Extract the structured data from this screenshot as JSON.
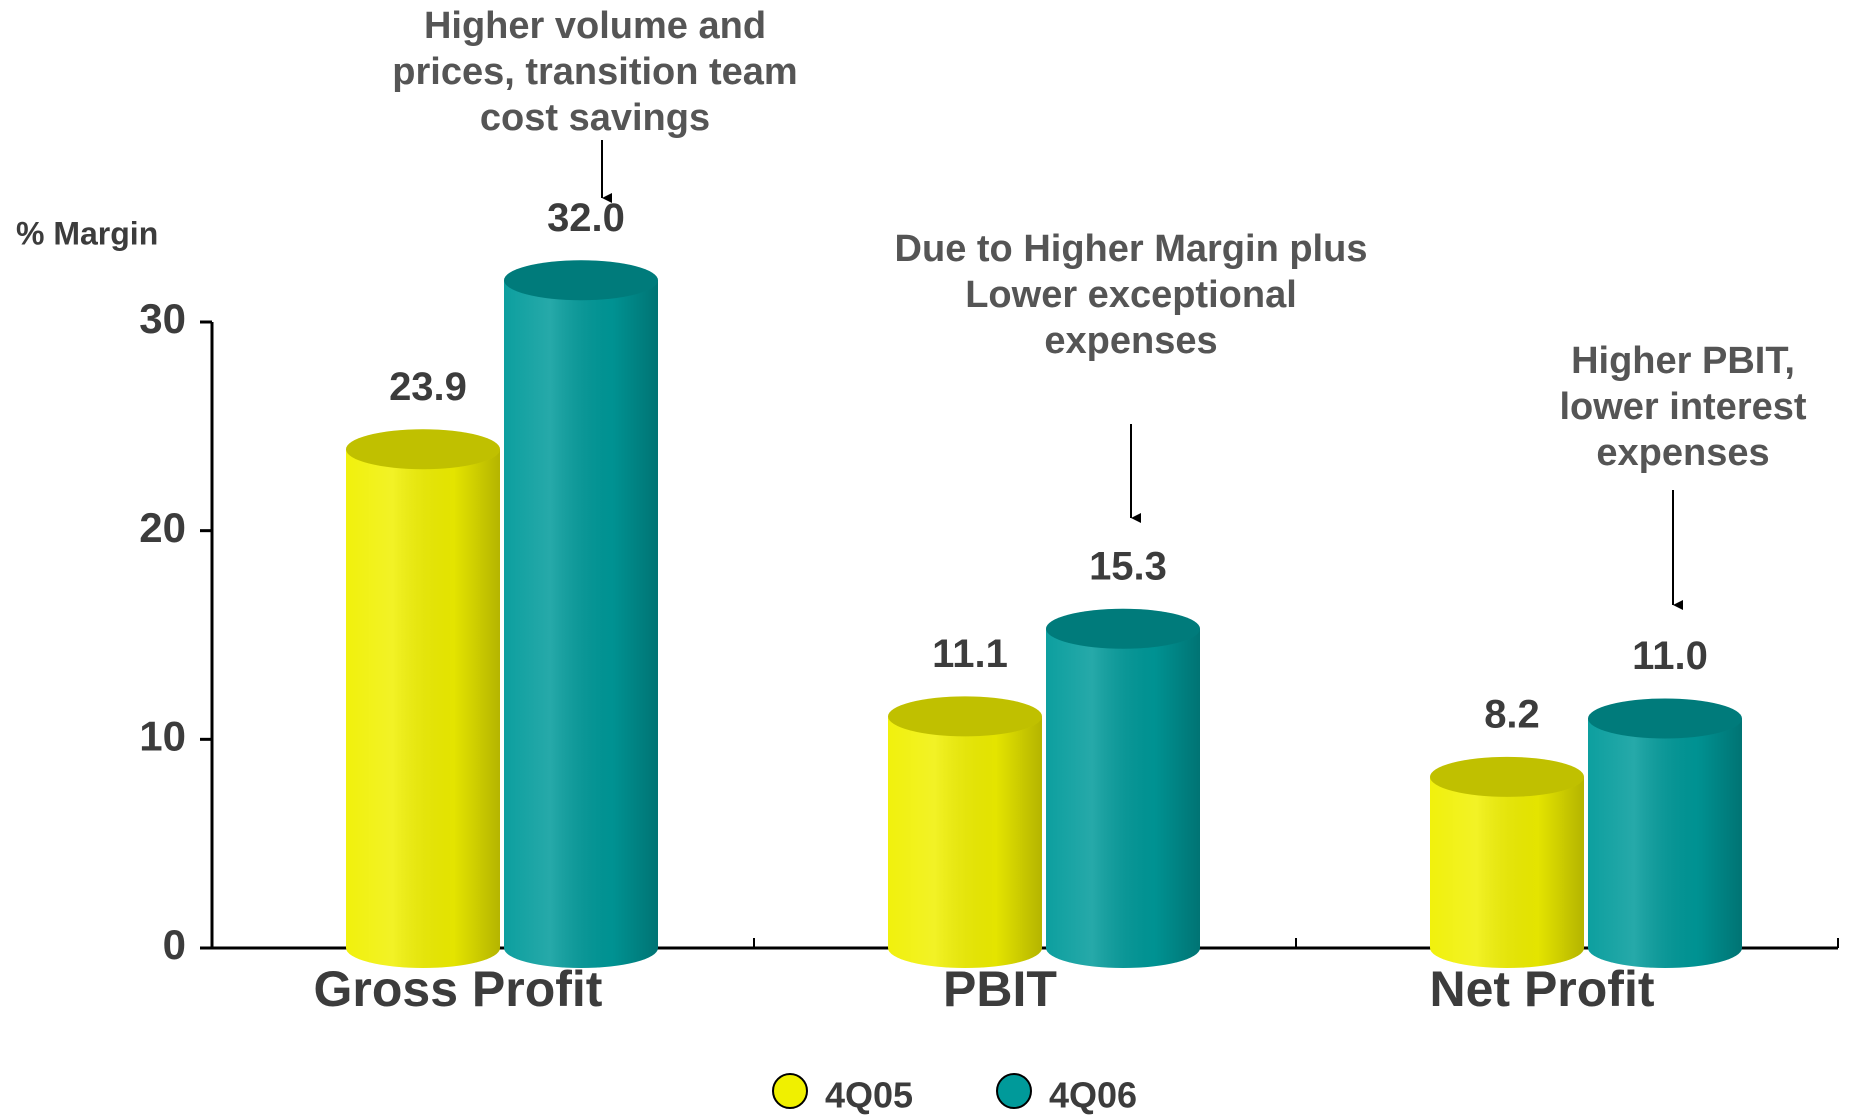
{
  "chart_data": {
    "type": "bar",
    "y_label": "% Margin",
    "categories": [
      "Gross Profit",
      "PBIT",
      "Net Profit"
    ],
    "series": [
      {
        "name": "4Q05",
        "color": "#f0f000",
        "values": [
          23.9,
          11.1,
          8.2
        ],
        "value_labels": [
          "23.9",
          "11.1",
          "8.2"
        ]
      },
      {
        "name": "4Q06",
        "color": "#009a9a",
        "values": [
          32.0,
          15.3,
          11.0
        ],
        "value_labels": [
          "32.0",
          "15.3",
          "11.0"
        ]
      }
    ],
    "ylim": [
      0,
      30
    ],
    "yticks": [
      0,
      10,
      20,
      30
    ],
    "annotations": [
      {
        "lines": [
          "Higher volume and",
          "prices, transition team",
          "cost savings"
        ]
      },
      {
        "lines": [
          "Due to Higher Margin plus",
          "Lower exceptional",
          "expenses"
        ]
      },
      {
        "lines": [
          "Higher PBIT,",
          "lower interest",
          "expenses"
        ]
      }
    ]
  }
}
